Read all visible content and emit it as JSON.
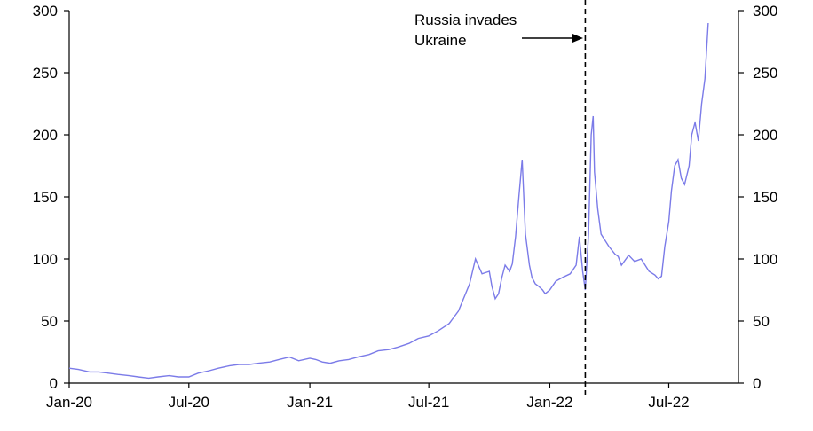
{
  "chart_data": {
    "type": "line",
    "title": "",
    "xlabel": "",
    "ylabel": "",
    "ylim": [
      0,
      300
    ],
    "y_ticks": [
      0,
      50,
      100,
      150,
      200,
      250,
      300
    ],
    "y_tick_labels": [
      "0",
      "50",
      "100",
      "150",
      "200",
      "250",
      "300"
    ],
    "x_range": [
      "2020-01-01",
      "2022-10-15"
    ],
    "x_ticks": [
      "2020-01-01",
      "2020-07-01",
      "2021-01-01",
      "2021-07-01",
      "2022-01-01",
      "2022-07-01"
    ],
    "x_tick_labels": [
      "Jan-20",
      "Jul-20",
      "Jan-21",
      "Jul-21",
      "Jan-22",
      "Jul-22"
    ],
    "dual_y_axis": true,
    "grid": false,
    "series": [
      {
        "color": "#7b7be8",
        "x": [
          "2020-01-01",
          "2020-01-15",
          "2020-02-01",
          "2020-02-15",
          "2020-03-01",
          "2020-03-15",
          "2020-04-01",
          "2020-04-15",
          "2020-05-01",
          "2020-05-15",
          "2020-06-01",
          "2020-06-15",
          "2020-07-01",
          "2020-07-15",
          "2020-08-01",
          "2020-08-15",
          "2020-09-01",
          "2020-09-15",
          "2020-10-01",
          "2020-10-15",
          "2020-11-01",
          "2020-11-15",
          "2020-12-01",
          "2020-12-15",
          "2021-01-01",
          "2021-01-10",
          "2021-01-20",
          "2021-02-01",
          "2021-02-15",
          "2021-03-01",
          "2021-03-15",
          "2021-04-01",
          "2021-04-15",
          "2021-05-01",
          "2021-05-15",
          "2021-06-01",
          "2021-06-15",
          "2021-07-01",
          "2021-07-15",
          "2021-08-01",
          "2021-08-15",
          "2021-09-01",
          "2021-09-10",
          "2021-09-20",
          "2021-10-01",
          "2021-10-05",
          "2021-10-10",
          "2021-10-15",
          "2021-10-20",
          "2021-10-25",
          "2021-11-01",
          "2021-11-05",
          "2021-11-10",
          "2021-11-15",
          "2021-11-20",
          "2021-11-25",
          "2021-12-01",
          "2021-12-05",
          "2021-12-10",
          "2021-12-15",
          "2021-12-21",
          "2021-12-25",
          "2022-01-01",
          "2022-01-10",
          "2022-01-20",
          "2022-02-01",
          "2022-02-10",
          "2022-02-15",
          "2022-02-20",
          "2022-02-24",
          "2022-03-01",
          "2022-03-05",
          "2022-03-08",
          "2022-03-10",
          "2022-03-15",
          "2022-03-20",
          "2022-04-01",
          "2022-04-10",
          "2022-04-15",
          "2022-04-20",
          "2022-05-01",
          "2022-05-10",
          "2022-05-20",
          "2022-06-01",
          "2022-06-10",
          "2022-06-15",
          "2022-06-20",
          "2022-06-25",
          "2022-07-01",
          "2022-07-05",
          "2022-07-10",
          "2022-07-15",
          "2022-07-20",
          "2022-07-25",
          "2022-08-01",
          "2022-08-05",
          "2022-08-10",
          "2022-08-15",
          "2022-08-20",
          "2022-08-25",
          "2022-08-30"
        ],
        "values": [
          12,
          11,
          9,
          9,
          8,
          7,
          6,
          5,
          4,
          5,
          6,
          5,
          5,
          8,
          10,
          12,
          14,
          15,
          15,
          16,
          17,
          19,
          21,
          18,
          20,
          19,
          17,
          16,
          18,
          19,
          21,
          23,
          26,
          27,
          29,
          32,
          36,
          38,
          42,
          48,
          58,
          80,
          100,
          88,
          90,
          78,
          68,
          72,
          85,
          95,
          90,
          96,
          118,
          150,
          180,
          120,
          95,
          85,
          80,
          78,
          75,
          72,
          75,
          82,
          85,
          88,
          95,
          118,
          90,
          75,
          120,
          200,
          215,
          170,
          140,
          120,
          110,
          104,
          102,
          95,
          103,
          98,
          100,
          90,
          87,
          84,
          86,
          110,
          130,
          155,
          175,
          180,
          165,
          160,
          175,
          200,
          210,
          195,
          225,
          245,
          290
        ]
      }
    ],
    "event_line": {
      "date": "2022-02-24",
      "label_lines": [
        "Russia invades",
        "Ukraine"
      ]
    }
  }
}
